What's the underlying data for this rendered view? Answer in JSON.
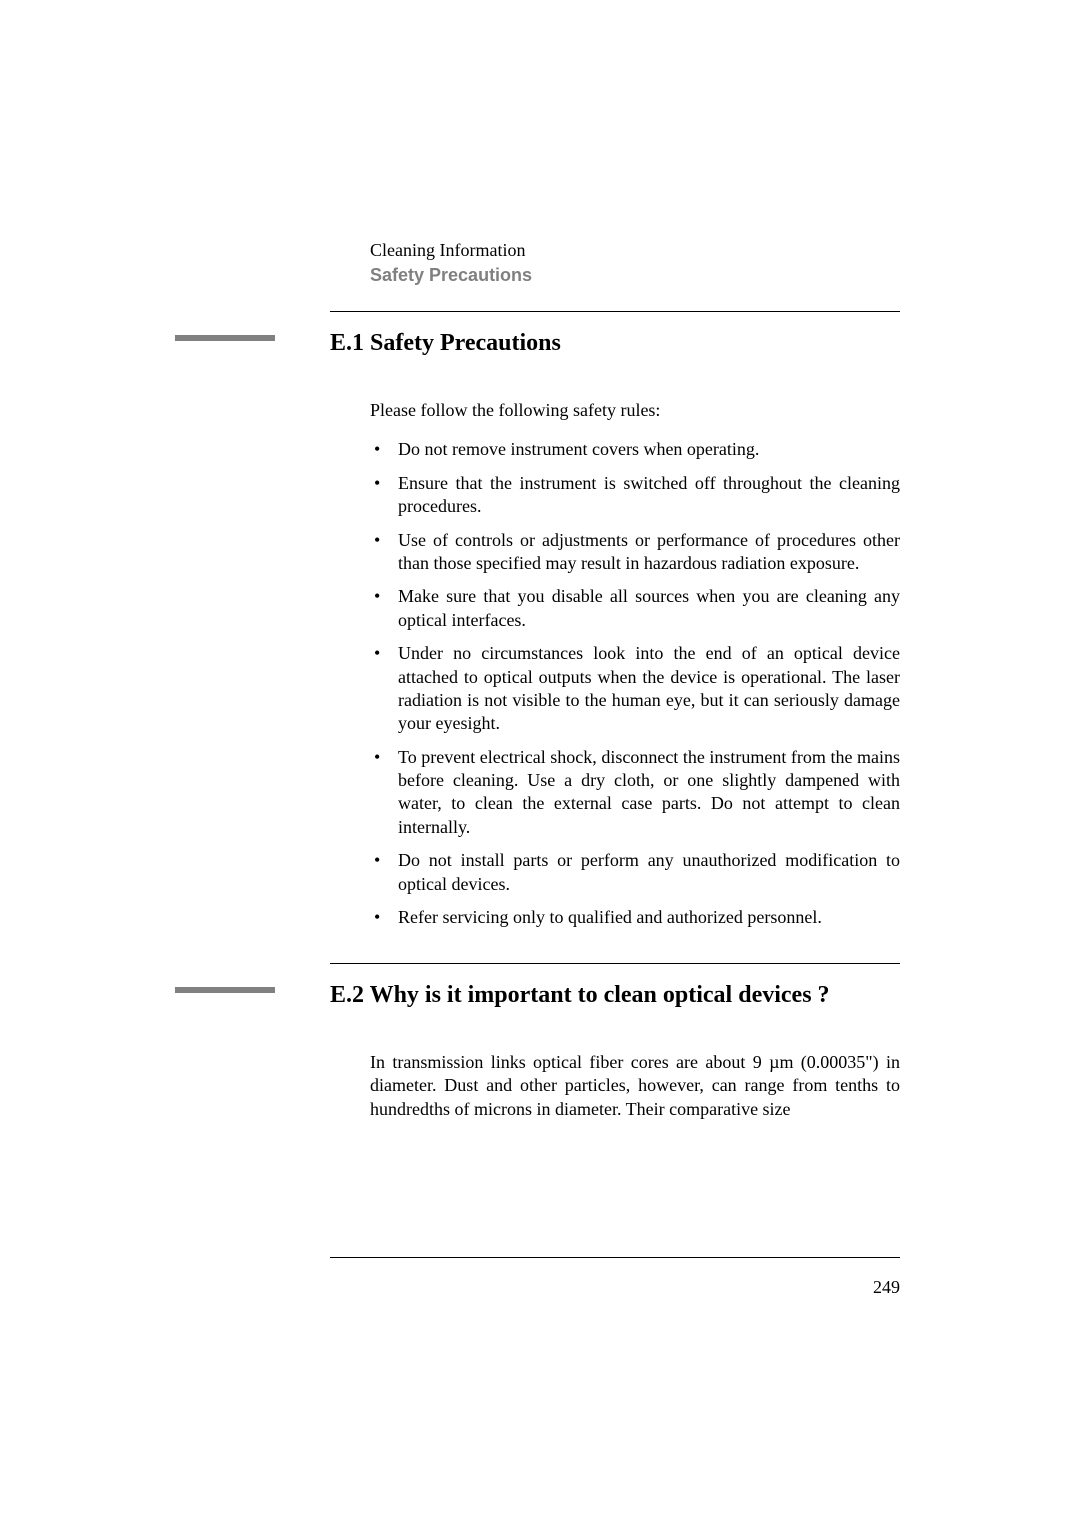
{
  "header": {
    "title": "Cleaning Information",
    "subtitle": "Safety Precautions"
  },
  "section1": {
    "heading": "E.1 Safety Precautions",
    "intro": "Please follow the following safety rules:",
    "bullets": [
      "Do not remove instrument covers when operating.",
      "Ensure that the instrument is switched off throughout the cleaning procedures.",
      "Use of controls or adjustments or performance of procedures other than those specified may result in hazardous radiation exposure.",
      "Make sure that you disable all sources when you are cleaning any optical interfaces.",
      "Under no circumstances look into the end of an optical device attached to optical outputs when the device is operational. The laser radiation is not visible to the human eye, but it can seriously damage your eyesight.",
      "To prevent electrical shock, disconnect the instrument from the mains before cleaning. Use a dry cloth, or one slightly dampened with water, to clean the external case parts. Do not attempt to clean internally.",
      "Do not install parts or perform any unauthorized modification to optical devices.",
      "Refer servicing only to qualified and authorized personnel."
    ]
  },
  "section2": {
    "heading": "E.2 Why is it important to clean optical devices ?",
    "body": "In transmission links optical fiber cores are about 9 µm (0.00035\") in diameter. Dust and other particles, however, can range from tenths to hundredths of microns in diameter. Their comparative size"
  },
  "pageNumber": "249",
  "colors": {
    "text": "#000000",
    "subtitle": "#808080",
    "marker": "#808080",
    "background": "#ffffff"
  },
  "typography": {
    "body_font": "Times New Roman",
    "subtitle_font": "Arial",
    "heading_size": 24,
    "body_size": 18
  }
}
